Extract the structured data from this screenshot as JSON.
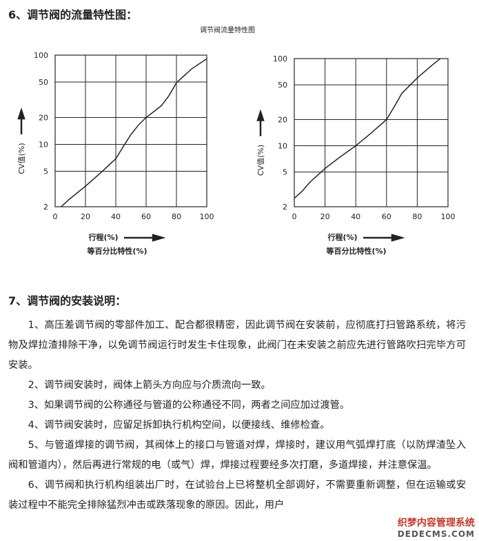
{
  "section6": {
    "title": "6、调节阀的流量特性图："
  },
  "chart_data": [
    {
      "type": "line",
      "title": "调节阀流量特性图",
      "x_label": "行程(%)",
      "x_sublabel": "等百分比特性(%)",
      "y_label": "CV值(%)",
      "x": [
        4,
        9,
        20,
        30,
        40,
        45,
        50,
        55,
        60,
        70,
        75,
        80,
        90,
        100
      ],
      "series": [
        {
          "color": "#222222",
          "values": [
            2,
            2.4,
            3.4,
            4.8,
            6.9,
            9.5,
            12.9,
            16.5,
            20,
            27,
            35,
            49,
            70,
            91
          ]
        }
      ],
      "xlim": [
        0,
        100
      ],
      "ylim": [
        2,
        100
      ],
      "xticks": [
        0,
        20,
        40,
        60,
        80,
        100
      ],
      "yticks": [
        2,
        5,
        10,
        20,
        50,
        100
      ],
      "log_y": true,
      "grid": true
    },
    {
      "type": "line",
      "x_label": "行程(%)",
      "x_sublabel": "等百分比特性(%)",
      "y_label": "CV值(%)",
      "x": [
        0,
        5,
        10,
        20,
        30,
        40,
        50,
        60,
        65,
        70,
        80,
        90,
        95
      ],
      "series": [
        {
          "color": "#222222",
          "values": [
            2.5,
            3,
            3.8,
            5.5,
            7.5,
            10,
            14,
            20,
            28,
            40,
            60,
            85,
            100
          ]
        }
      ],
      "xlim": [
        0,
        100
      ],
      "ylim": [
        2,
        100
      ],
      "xticks": [
        0,
        20,
        40,
        60,
        80,
        100
      ],
      "yticks": [
        2,
        5,
        10,
        20,
        50,
        100
      ],
      "log_y": true,
      "grid": true
    }
  ],
  "section7": {
    "title": "7、调节阀的安装说明：",
    "paragraphs": [
      "1、高压差调节阀的零部件加工、配合都很精密，因此调节阀在安装前，应彻底打扫管路系统，将污物及焊拉渣排除干净，以免调节阀运行时发生卡住现象，此阀门在未安装之前应先进行管路吹扫完毕方可安装。",
      "2、调节阀安装时，阀体上箭头方向应与介质流向一致。",
      "3、如果调节阀的公称通径与管道的公称通径不同，两者之间应加过渡管。",
      "4、调节阀安装时，应留足拆卸执行机构空间，以便接线、维修检查。",
      "5、与管道焊接的调节阀，其阀体上的接口与管道对焊，焊接时，建议用气弧焊打底（以防焊渣坠入阀和管道内），然后再进行常规的电（或气）焊，焊接过程要经多次打磨，多道焊接，并注意保温。",
      "6、调节阀和执行机构组装出厂时，在试验台上已将整机全部调好，不需要重新调整，但在运输或安装过程中不能完全排除猛烈冲击或跌落现象的原因。因此，用户"
    ]
  },
  "watermark": {
    "line1": "织梦内容管理系统",
    "line2": "DEDECMS.COM"
  }
}
